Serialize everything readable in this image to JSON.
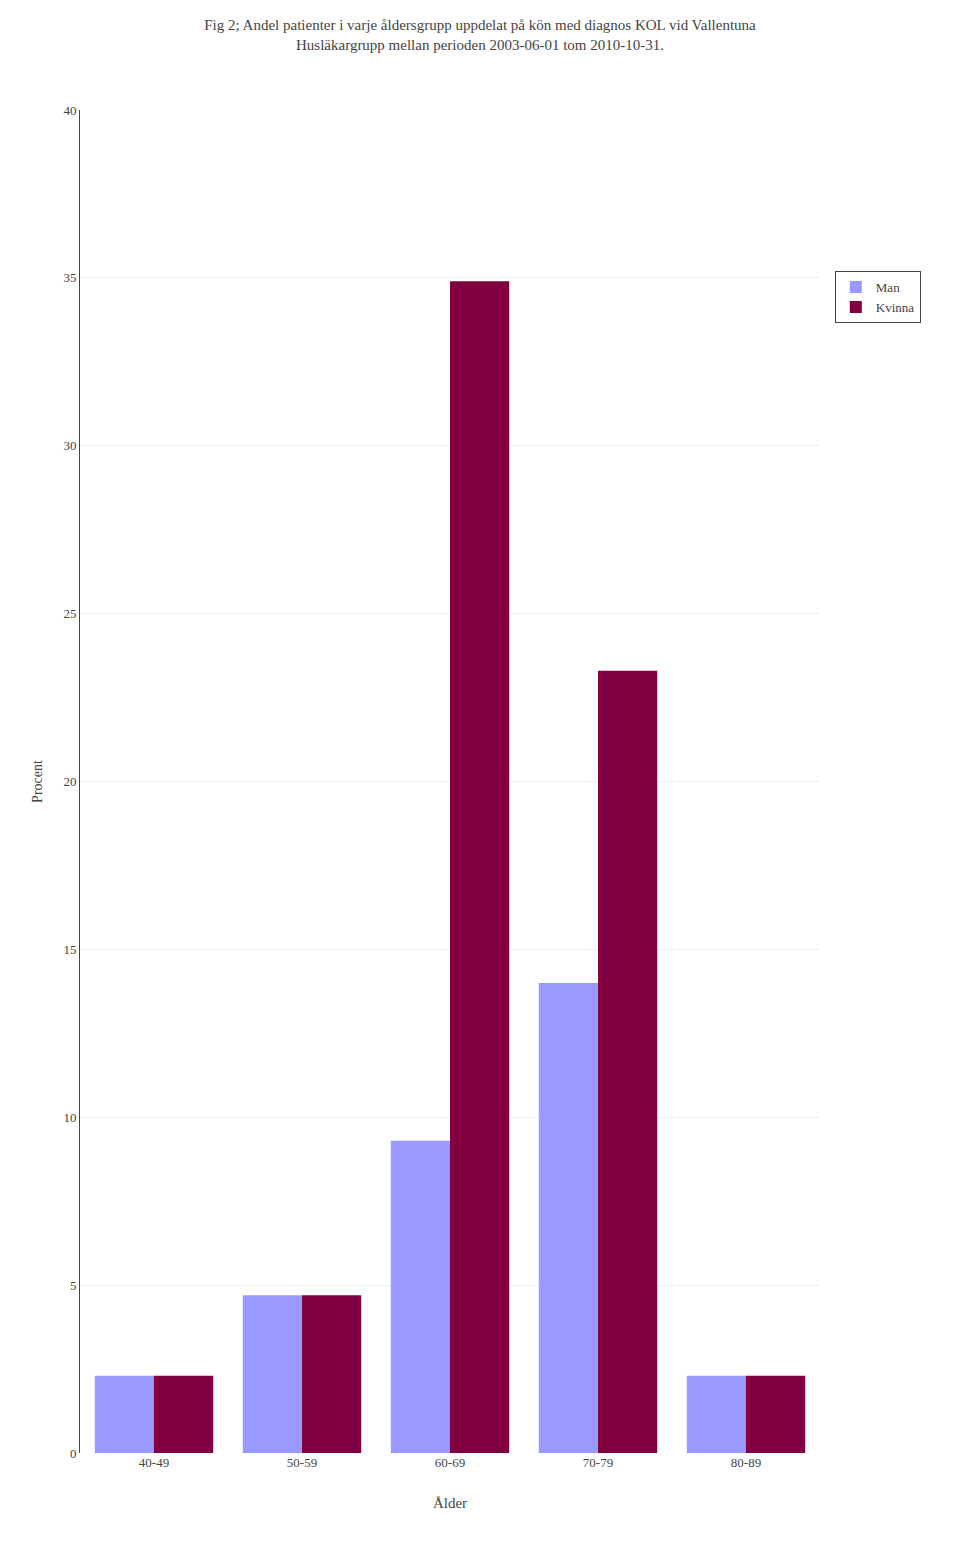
{
  "chart_data": {
    "type": "bar",
    "title": "Fig 2; Andel patienter i varje åldersgrupp uppdelat på kön med diagnos KOL vid Vallentuna Husläkargrupp mellan perioden 2003-06-01 tom 2010-10-31.",
    "x_label": "Ålder",
    "y_label": "Procent",
    "categories": [
      "40-49",
      "50-59",
      "60-69",
      "70-79",
      "80-89"
    ],
    "series": [
      {
        "name": "Man",
        "color": "#9999ff",
        "values": [
          2.3,
          4.7,
          9.3,
          14.0,
          2.3
        ]
      },
      {
        "name": "Kvinna",
        "color": "#800040",
        "values": [
          2.3,
          4.7,
          34.9,
          23.3,
          2.3
        ]
      }
    ],
    "ylim": [
      0,
      40
    ],
    "yticks": [
      0,
      5,
      10,
      15,
      20,
      25,
      30,
      35,
      40
    ],
    "grid": true,
    "legend": "right"
  }
}
